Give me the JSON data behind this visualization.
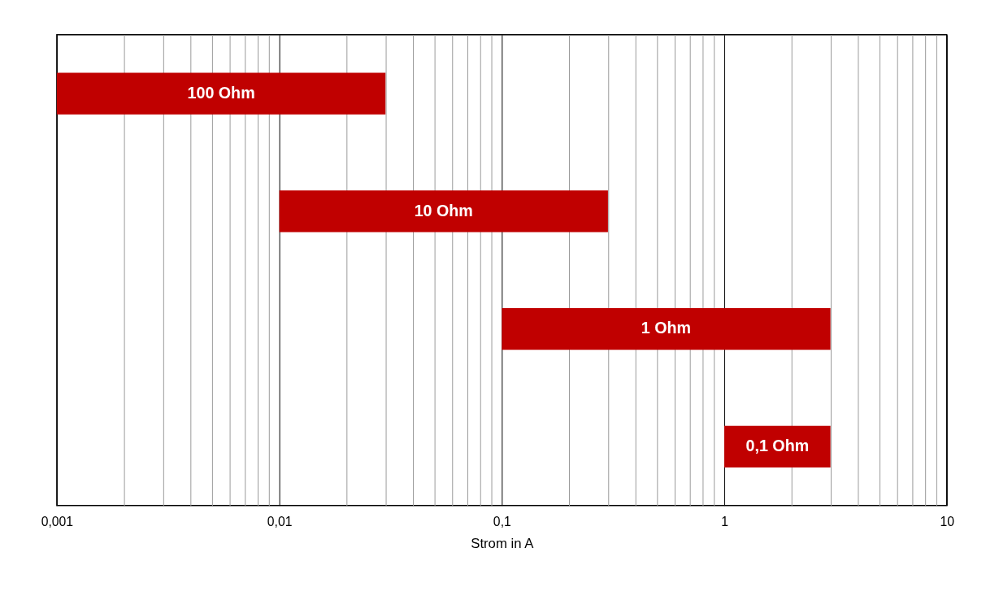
{
  "chart_data": {
    "type": "bar",
    "orientation": "horizontal",
    "xlabel": "Strom in A",
    "categories": [
      "100 Ohm",
      "10 Ohm",
      "1 Ohm",
      "0,1 Ohm"
    ],
    "base": [
      0.001,
      0.01,
      0.1,
      1
    ],
    "values": [
      0.029,
      0.29,
      2.9,
      2
    ],
    "color": "#c00000",
    "log": "x",
    "xlim": [
      0.001,
      10
    ],
    "xticks": [
      {
        "value": 0.001,
        "label": "0,001"
      },
      {
        "value": 0.002,
        "label": null
      },
      {
        "value": 0.003,
        "label": null
      },
      {
        "value": 0.004,
        "label": null
      },
      {
        "value": 0.005,
        "label": null
      },
      {
        "value": 0.006,
        "label": null
      },
      {
        "value": 0.007,
        "label": null
      },
      {
        "value": 0.008,
        "label": null
      },
      {
        "value": 0.009,
        "label": null
      },
      {
        "value": 0.01,
        "label": "0,01"
      },
      {
        "value": 0.02,
        "label": null
      },
      {
        "value": 0.03,
        "label": null
      },
      {
        "value": 0.04,
        "label": null
      },
      {
        "value": 0.05,
        "label": null
      },
      {
        "value": 0.06,
        "label": null
      },
      {
        "value": 0.07,
        "label": null
      },
      {
        "value": 0.08,
        "label": null
      },
      {
        "value": 0.09,
        "label": null
      },
      {
        "value": 0.1,
        "label": "0,1"
      },
      {
        "value": 0.2,
        "label": null
      },
      {
        "value": 0.3,
        "label": null
      },
      {
        "value": 0.4,
        "label": null
      },
      {
        "value": 0.5,
        "label": null
      },
      {
        "value": 0.6,
        "label": null
      },
      {
        "value": 0.7,
        "label": null
      },
      {
        "value": 0.8,
        "label": null
      },
      {
        "value": 0.9,
        "label": null
      },
      1,
      {
        "value": 2,
        "label": null
      },
      {
        "value": 3,
        "label": null
      },
      {
        "value": 4,
        "label": null
      },
      {
        "value": 5,
        "label": null
      },
      {
        "value": 6,
        "label": null
      },
      {
        "value": 7,
        "label": null
      },
      {
        "value": 8,
        "label": null
      },
      {
        "value": 9,
        "label": null
      },
      10
    ],
    "grid": "x",
    "tick_labels": "x"
  }
}
